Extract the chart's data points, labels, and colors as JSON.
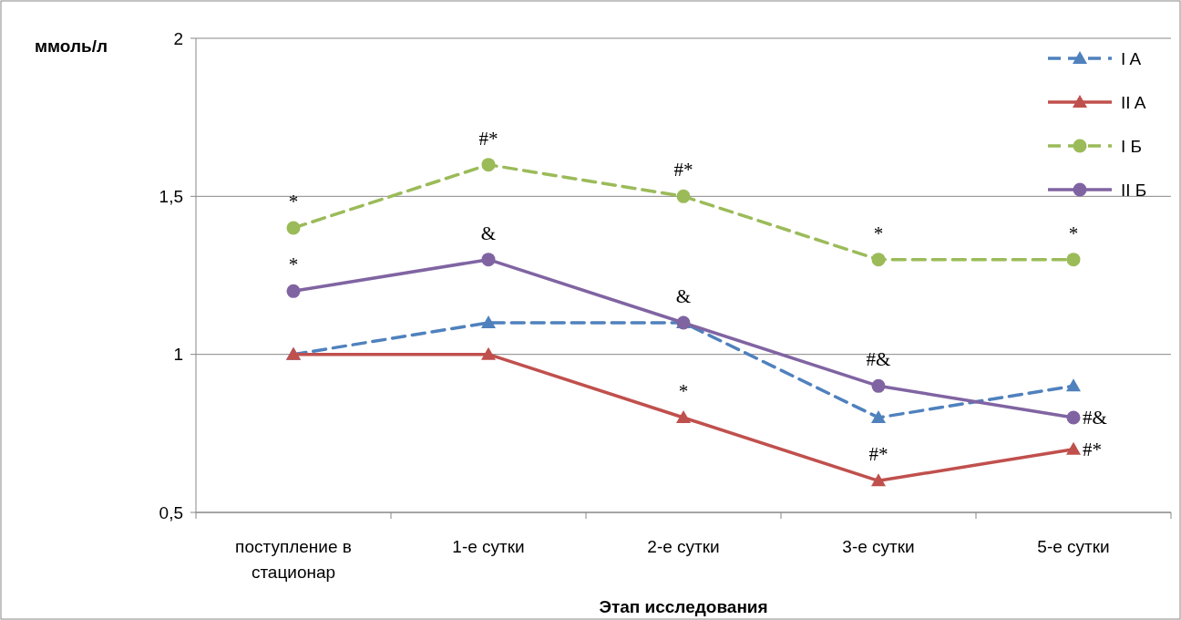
{
  "chart_data": {
    "type": "line",
    "ylabel": "ммоль/л",
    "xlabel": "Этап исследования",
    "categories": [
      "поступление в стационар",
      "1-е сутки",
      "2-е сутки",
      "3-е сутки",
      "5-е сутки"
    ],
    "ylim": [
      0.5,
      2
    ],
    "yticks": [
      {
        "value": 0.5,
        "label": "0,5"
      },
      {
        "value": 1,
        "label": "1"
      },
      {
        "value": 1.5,
        "label": "1,5"
      },
      {
        "value": 2,
        "label": "2"
      }
    ],
    "grid": "y",
    "legend": "top right",
    "series": [
      {
        "name": "I A",
        "color": "#4f81bd",
        "values": [
          1.0,
          1.1,
          1.1,
          0.8,
          0.9
        ],
        "marker": "triangle",
        "line_style": "dashed"
      },
      {
        "name": "II A",
        "color": "#c0504d",
        "values": [
          1.0,
          1.0,
          0.8,
          0.6,
          0.7
        ],
        "marker": "triangle",
        "line_style": "solid"
      },
      {
        "name": "I Б",
        "color": "#9bbb59",
        "values": [
          1.4,
          1.6,
          1.5,
          1.3,
          1.3
        ],
        "marker": "circle",
        "line_style": "dashed"
      },
      {
        "name": "II Б",
        "color": "#8064a2",
        "values": [
          1.2,
          1.3,
          1.1,
          0.9,
          0.8
        ],
        "marker": "circle",
        "line_style": "solid"
      }
    ],
    "annotations": [
      {
        "text": "*",
        "x": "поступление в стационар",
        "y": 1.4
      },
      {
        "text": "*",
        "x": "поступление в стационар",
        "y": 1.2
      },
      {
        "text": "#*",
        "x": "1-е сутки",
        "y": 1.6
      },
      {
        "text": "&",
        "x": "1-е сутки",
        "y": 1.3
      },
      {
        "text": "#*",
        "x": "2-е сутки",
        "y": 1.5
      },
      {
        "text": "&",
        "x": "2-е сутки",
        "y": 1.1
      },
      {
        "text": "*",
        "x": "2-е сутки",
        "y": 0.8
      },
      {
        "text": "*",
        "x": "3-е сутки",
        "y": 1.3
      },
      {
        "text": "#&",
        "x": "3-е сутки",
        "y": 0.9
      },
      {
        "text": "#*",
        "x": "3-е сутки",
        "y": 0.6
      },
      {
        "text": "*",
        "x": "5-е сутки",
        "y": 1.3
      },
      {
        "text": "#&",
        "x": "5-е сутки",
        "y": 0.8
      },
      {
        "text": "#*",
        "x": "5-е сутки",
        "y": 0.7
      }
    ]
  }
}
